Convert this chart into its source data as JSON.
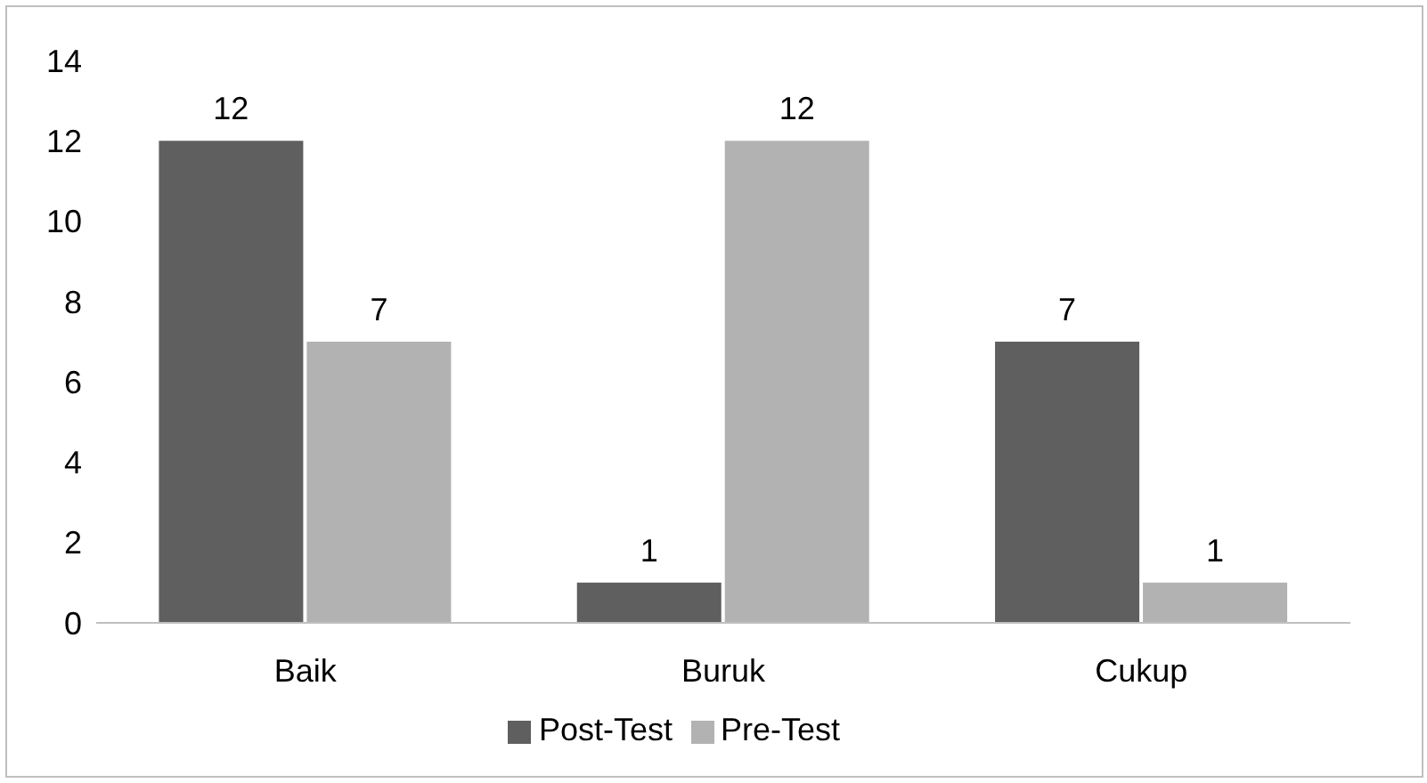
{
  "chart_data": {
    "type": "bar",
    "categories": [
      "Baik",
      "Buruk",
      "Cukup"
    ],
    "series": [
      {
        "name": "Post-Test",
        "color": "#5f5f5f",
        "values": [
          12,
          1,
          7
        ]
      },
      {
        "name": "Pre-Test",
        "color": "#b2b2b2",
        "values": [
          7,
          12,
          1
        ]
      }
    ],
    "ylim": [
      0,
      14
    ],
    "yticks": [
      0,
      2,
      4,
      6,
      8,
      10,
      12,
      14
    ],
    "data_labels": true,
    "legend": "bottom"
  }
}
